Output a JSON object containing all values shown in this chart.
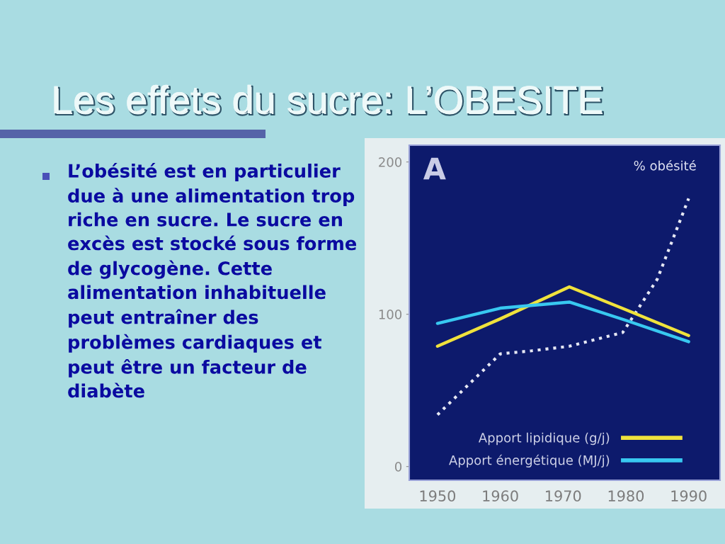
{
  "chart_data": {
    "type": "line",
    "title": "Les effets du sucre: L’OBESITE",
    "annotations": [
      "L’obésité est en particulier due à une alimentation trop riche en sucre. Le sucre en excès est stocké sous forme de glycogène. Cette alimentation inhabituelle peut entraîner des problèmes cardiaques et peut être un facteur de diabète",
      "A",
      {
        "text": "% obésité",
        "x": 1990,
        "y": 176
      }
    ],
    "series": [
      {
        "color": "#e6e8f4",
        "line_style": "dotted",
        "x": [
          1950,
          1960,
          1965,
          1971,
          1979.5,
          1985,
          1990
        ],
        "values": [
          34,
          74,
          76,
          79,
          88,
          123,
          176
        ]
      },
      {
        "name": "Apport lipidique (g/j)",
        "color": "#f0e23c",
        "x": [
          1950,
          1960,
          1971,
          1980,
          1990
        ],
        "values": [
          79,
          97,
          118,
          103,
          86
        ]
      },
      {
        "name": "Apport énergétique (MJ/j)",
        "color": "#38c8f0",
        "x": [
          1950,
          1960,
          1971,
          1980,
          1990
        ],
        "values": [
          94,
          104,
          108,
          96,
          82
        ]
      }
    ],
    "xlim": [
      1945.5,
      1995
    ],
    "xticks": [
      1950,
      1960,
      1970,
      1980,
      1990
    ],
    "ylim": [
      -9,
      211
    ],
    "yticks": [
      0,
      100,
      200
    ],
    "legend": "bottom",
    "line_style": "solid"
  }
}
